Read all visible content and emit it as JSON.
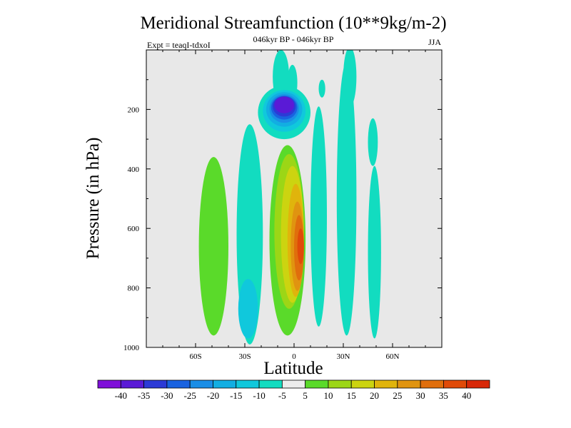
{
  "chart_data": {
    "type": "heatmap",
    "title": "Meridional Streamfunction (10**9kg/m-2)",
    "subtitle_center": "046kyr BP - 046kyr BP",
    "subtitle_left": "Expt = teaqI-tdxoI",
    "subtitle_right": "JJA",
    "xlabel": "Latitude",
    "ylabel": "Pressure (in hPa)",
    "xlim": [
      -90,
      90
    ],
    "ylim": [
      1000,
      0
    ],
    "x_ticks": [
      {
        "value": -60,
        "label": "60S"
      },
      {
        "value": -30,
        "label": "30S"
      },
      {
        "value": 0,
        "label": "0"
      },
      {
        "value": 30,
        "label": "30N"
      },
      {
        "value": 60,
        "label": "60N"
      }
    ],
    "y_ticks": [
      {
        "value": 200,
        "label": "200"
      },
      {
        "value": 400,
        "label": "400"
      },
      {
        "value": 600,
        "label": "600"
      },
      {
        "value": 800,
        "label": "800"
      },
      {
        "value": 1000,
        "label": "1000"
      }
    ],
    "background_color": "#e8e8e8",
    "colorbar": {
      "colors": [
        "#7f10d9",
        "#5a1ad6",
        "#2c3ad6",
        "#1962e0",
        "#1a8ee6",
        "#12aee2",
        "#10c8dc",
        "#12dcc0",
        "#ececec",
        "#5ada2a",
        "#9cd616",
        "#ccd410",
        "#e0b40c",
        "#e09410",
        "#e06e0c",
        "#e04a08",
        "#d82808"
      ],
      "labels": [
        "-40",
        "-35",
        "-30",
        "-25",
        "-20",
        "-15",
        "-10",
        "-5",
        "5",
        "10",
        "15",
        "20",
        "25",
        "30",
        "35",
        "40"
      ]
    },
    "features": [
      {
        "name": "southern-green-cell",
        "lat": -49,
        "p": 660,
        "dlat": 9,
        "dp": 300,
        "value": 7
      },
      {
        "name": "southern-cyan-cell",
        "lat": -27,
        "p": 620,
        "dlat": 8,
        "dp": 370,
        "value": -7
      },
      {
        "name": "southern-cyan-cell-low",
        "lat": -28,
        "p": 870,
        "dlat": 6,
        "dp": 100,
        "value": -12
      },
      {
        "name": "upper-tropical-cyan",
        "lat": -8,
        "p": 90,
        "dlat": 5,
        "dp": 90,
        "value": -7
      },
      {
        "name": "upper-tropical-cyan-2",
        "lat": -1,
        "p": 110,
        "dlat": 3,
        "dp": 60,
        "value": -7
      },
      {
        "name": "upper-negative-cell-outer",
        "lat": -6,
        "p": 210,
        "dlat": 16,
        "dp": 90,
        "value": -8
      },
      {
        "name": "upper-negative-cell-mid1",
        "lat": -6,
        "p": 205,
        "dlat": 13,
        "dp": 70,
        "value": -13
      },
      {
        "name": "upper-negative-cell-mid2",
        "lat": -6,
        "p": 200,
        "dlat": 11,
        "dp": 58,
        "value": -18
      },
      {
        "name": "upper-negative-cell-mid3",
        "lat": -6,
        "p": 197,
        "dlat": 9,
        "dp": 48,
        "value": -23
      },
      {
        "name": "upper-negative-cell-mid4",
        "lat": -6,
        "p": 194,
        "dlat": 8,
        "dp": 40,
        "value": -28
      },
      {
        "name": "upper-negative-cell-mid5",
        "lat": -6,
        "p": 190,
        "dlat": 7,
        "dp": 34,
        "value": -33
      },
      {
        "name": "upper-negative-cell-core",
        "lat": -6,
        "p": 185,
        "dlat": 6,
        "dp": 28,
        "value": -40
      },
      {
        "name": "tropical-positive-cell-1",
        "lat": -4,
        "p": 640,
        "dlat": 11,
        "dp": 320,
        "value": 7
      },
      {
        "name": "tropical-positive-cell-2",
        "lat": -3,
        "p": 610,
        "dlat": 9,
        "dp": 260,
        "value": 12
      },
      {
        "name": "tropical-positive-cell-3",
        "lat": -1,
        "p": 620,
        "dlat": 7,
        "dp": 230,
        "value": 17
      },
      {
        "name": "tropical-positive-cell-4",
        "lat": 1,
        "p": 640,
        "dlat": 5,
        "dp": 190,
        "value": 22
      },
      {
        "name": "tropical-positive-cell-5",
        "lat": 2,
        "p": 660,
        "dlat": 4,
        "dp": 150,
        "value": 27
      },
      {
        "name": "tropical-positive-cell-6",
        "lat": 3,
        "p": 665,
        "dlat": 3,
        "dp": 110,
        "value": 32
      },
      {
        "name": "tropical-positive-cell-core",
        "lat": 4,
        "p": 660,
        "dlat": 2,
        "dp": 60,
        "value": 37
      },
      {
        "name": "northern-cyan-1",
        "lat": 15,
        "p": 560,
        "dlat": 5,
        "dp": 370,
        "value": -7
      },
      {
        "name": "northern-cyan-1-upper",
        "lat": 17,
        "p": 130,
        "dlat": 2,
        "dp": 30,
        "value": -7
      },
      {
        "name": "northern-cyan-2",
        "lat": 32,
        "p": 500,
        "dlat": 6,
        "dp": 460,
        "value": -7
      },
      {
        "name": "northern-cyan-2-upper",
        "lat": 34,
        "p": 90,
        "dlat": 4,
        "dp": 100,
        "value": -7
      },
      {
        "name": "northern-cyan-3",
        "lat": 49,
        "p": 680,
        "dlat": 4,
        "dp": 290,
        "value": -7
      },
      {
        "name": "northern-cyan-3-upper",
        "lat": 48,
        "p": 310,
        "dlat": 3,
        "dp": 80,
        "value": -7
      }
    ]
  }
}
